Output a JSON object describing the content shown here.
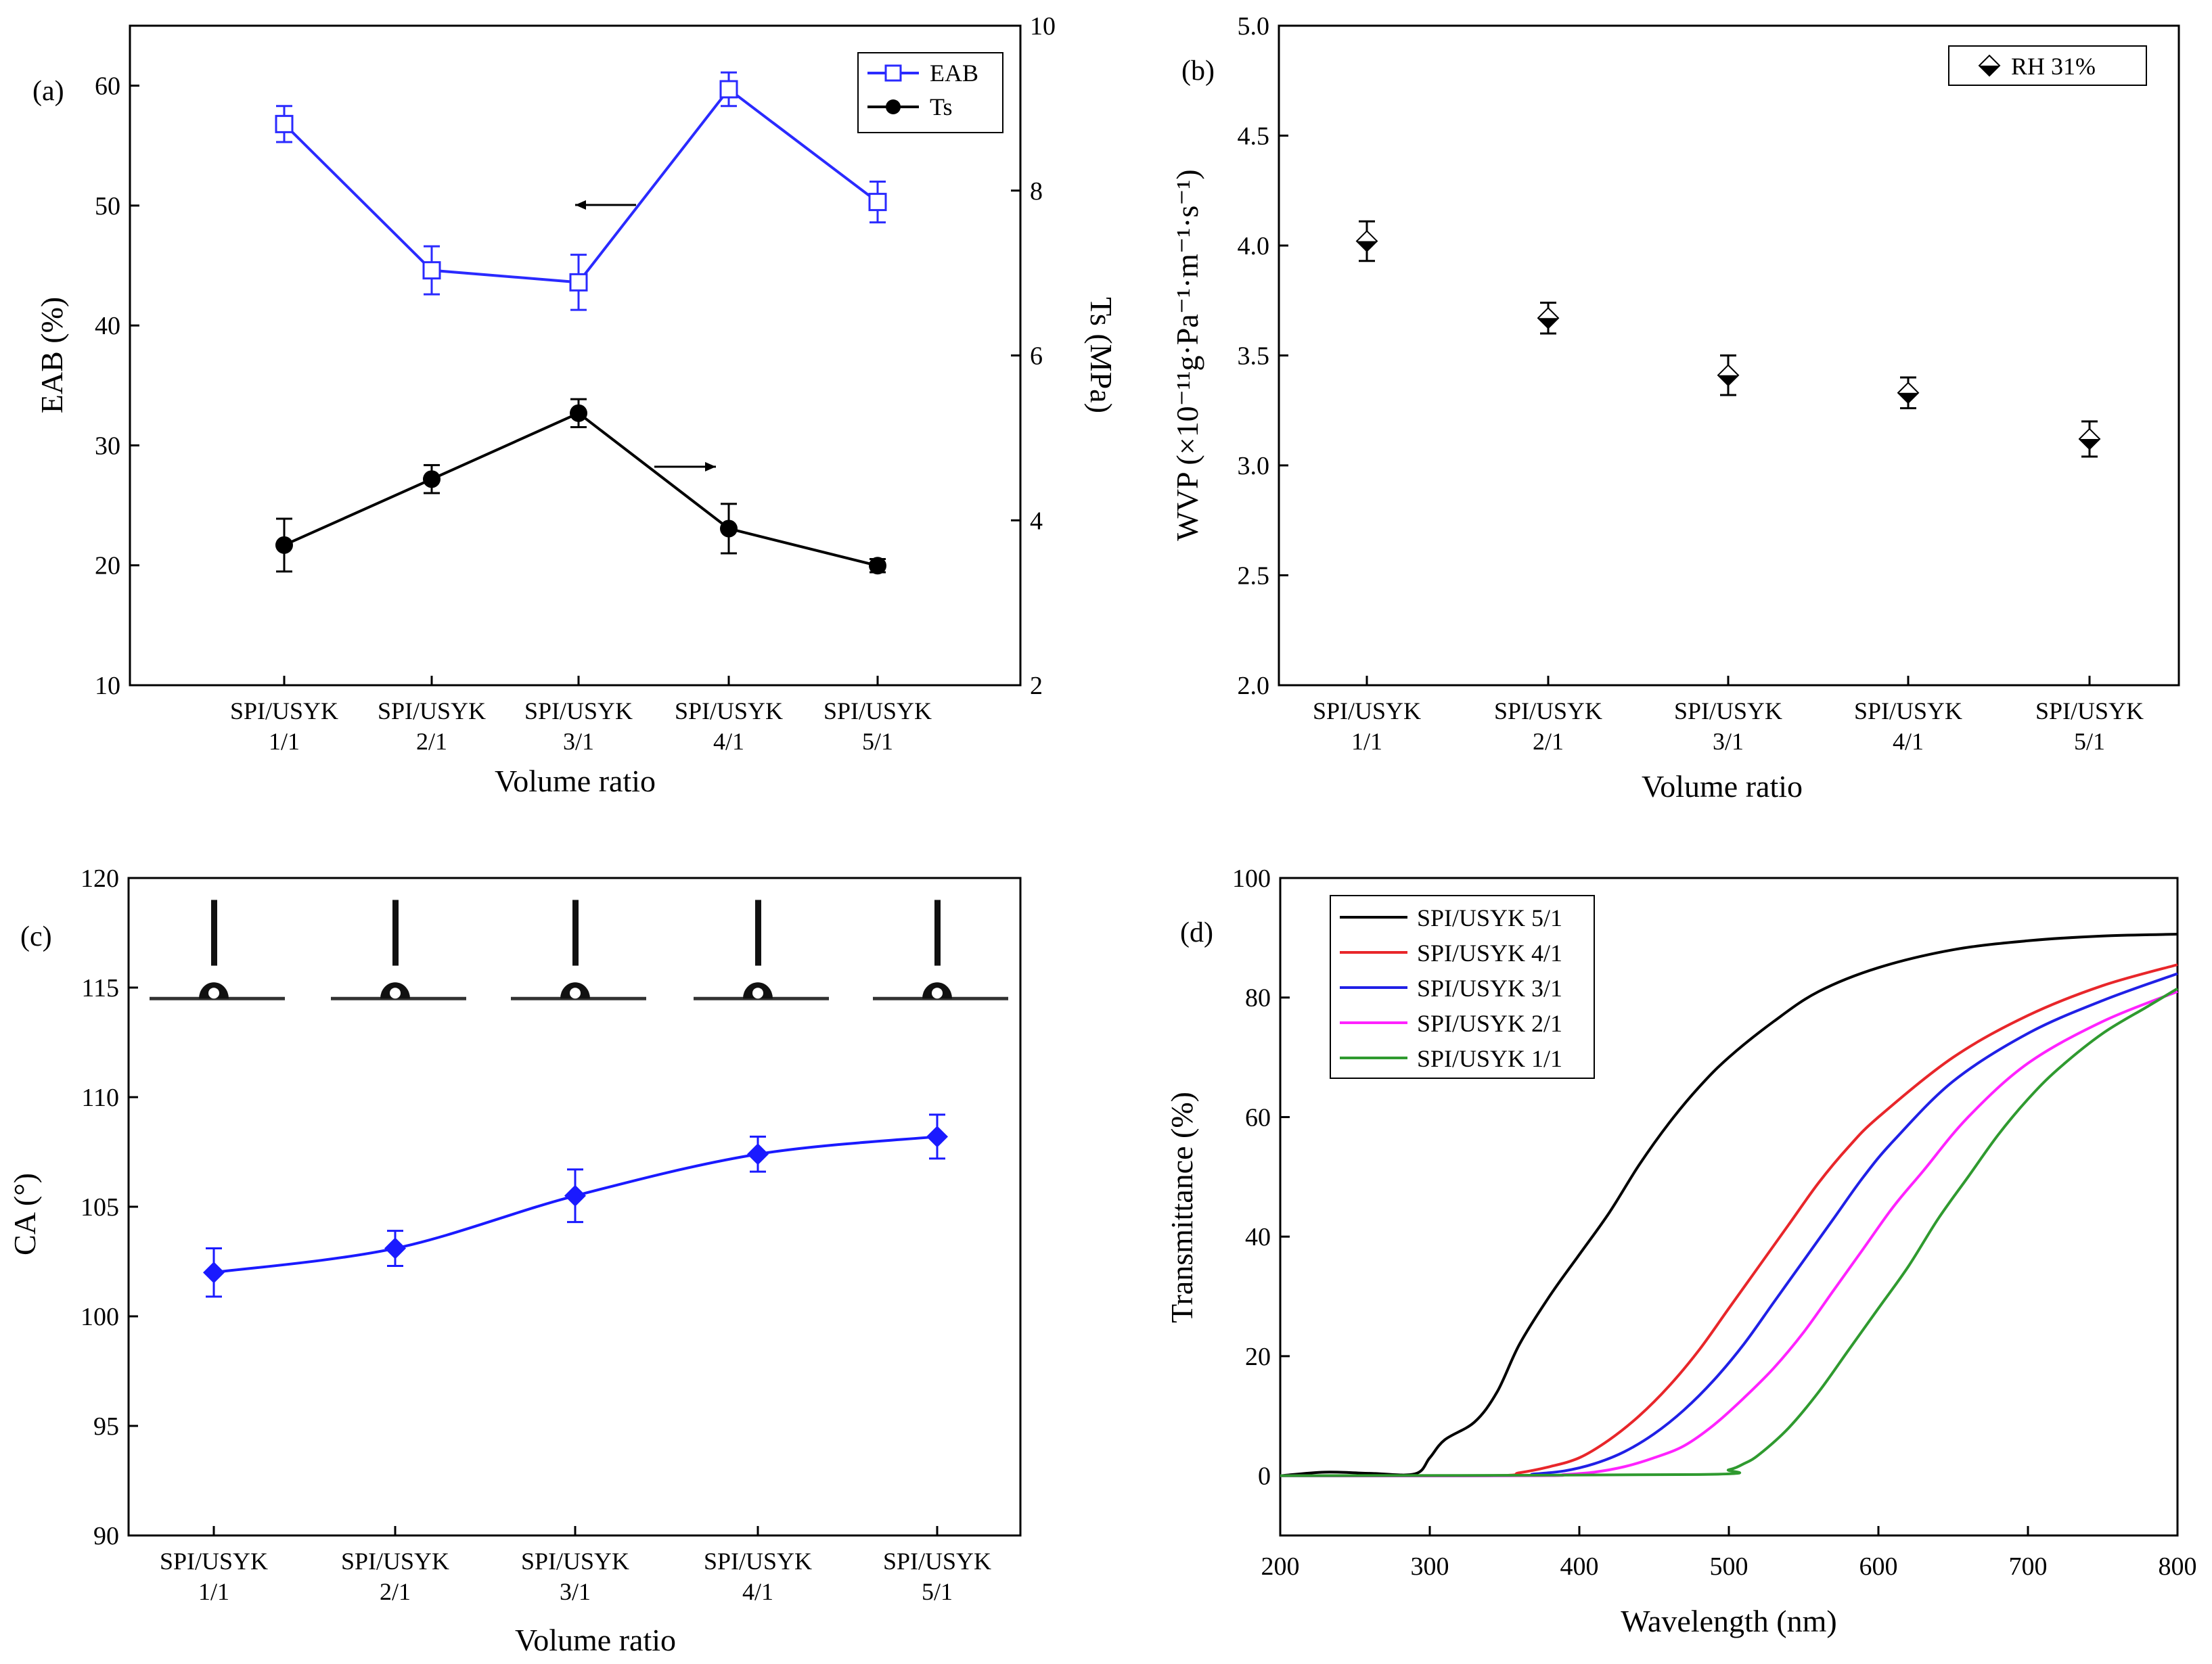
{
  "chart_data": [
    {
      "panel": "(a)",
      "type": "line",
      "categories": [
        "SPI/USYK 1/1",
        "SPI/USYK 2/1",
        "SPI/USYK 3/1",
        "SPI/USYK 4/1",
        "SPI/USYK 5/1"
      ],
      "category_lines": [
        [
          "SPI/USYK",
          "1/1"
        ],
        [
          "SPI/USYK",
          "2/1"
        ],
        [
          "SPI/USYK",
          "3/1"
        ],
        [
          "SPI/USYK",
          "4/1"
        ],
        [
          "SPI/USYK",
          "5/1"
        ]
      ],
      "xlabel": "Volume ratio",
      "ylabel": "EAB (%)",
      "ylabel_right": "Ts (MPa)",
      "ylim": [
        10,
        65
      ],
      "yticks": [
        10,
        20,
        30,
        40,
        50,
        60
      ],
      "ylim_right": [
        2,
        10
      ],
      "yticks_right": [
        2,
        4,
        6,
        8,
        10
      ],
      "series": [
        {
          "name": "EAB",
          "axis": "left",
          "color": "#2a2aff",
          "marker": "square-open",
          "values": [
            56.8,
            44.6,
            43.6,
            59.7,
            50.3
          ],
          "errors": [
            1.5,
            2.0,
            2.3,
            1.4,
            1.7
          ]
        },
        {
          "name": "Ts",
          "axis": "right",
          "color": "#000000",
          "marker": "circle",
          "values": [
            3.7,
            4.5,
            5.3,
            3.9,
            3.45
          ],
          "errors": [
            0.32,
            0.17,
            0.17,
            0.3,
            0.08
          ]
        }
      ],
      "legend_position": "top-right"
    },
    {
      "panel": "(b)",
      "type": "scatter",
      "categories": [
        "SPI/USYK 1/1",
        "SPI/USYK 2/1",
        "SPI/USYK 3/1",
        "SPI/USYK 4/1",
        "SPI/USYK 5/1"
      ],
      "category_lines": [
        [
          "SPI/USYK",
          "1/1"
        ],
        [
          "SPI/USYK",
          "2/1"
        ],
        [
          "SPI/USYK",
          "3/1"
        ],
        [
          "SPI/USYK",
          "4/1"
        ],
        [
          "SPI/USYK",
          "5/1"
        ]
      ],
      "xlabel": "Volume ratio",
      "ylabel": "WVP (×10⁻¹¹g·Pa⁻¹·m⁻¹·s⁻¹)",
      "ylim": [
        2.0,
        5.0
      ],
      "yticks": [
        "2.0",
        "2.5",
        "3.0",
        "3.5",
        "4.0",
        "4.5",
        "5.0"
      ],
      "series": [
        {
          "name": "RH 31%",
          "color": "#000000",
          "marker": "diamond-half",
          "values": [
            4.02,
            3.67,
            3.41,
            3.33,
            3.12
          ],
          "errors": [
            0.09,
            0.07,
            0.09,
            0.07,
            0.08
          ]
        }
      ],
      "legend_position": "top-right"
    },
    {
      "panel": "(c)",
      "type": "line",
      "categories": [
        "SPI/USYK 1/1",
        "SPI/USYK 2/1",
        "SPI/USYK 3/1",
        "SPI/USYK 4/1",
        "SPI/USYK 5/1"
      ],
      "category_lines": [
        [
          "SPI/USYK",
          "1/1"
        ],
        [
          "SPI/USYK",
          "2/1"
        ],
        [
          "SPI/USYK",
          "3/1"
        ],
        [
          "SPI/USYK",
          "4/1"
        ],
        [
          "SPI/USYK",
          "5/1"
        ]
      ],
      "xlabel": "Volume ratio",
      "ylabel": "CA (°)",
      "ylim": [
        90,
        120
      ],
      "yticks": [
        90,
        95,
        100,
        105,
        110,
        115,
        120
      ],
      "series": [
        {
          "name": "CA",
          "color": "#1a1aff",
          "marker": "diamond",
          "values": [
            102.0,
            103.1,
            105.5,
            107.4,
            108.2
          ],
          "errors": [
            1.1,
            0.8,
            1.2,
            0.8,
            1.0
          ]
        }
      ],
      "inset": "droplet images above each sample"
    },
    {
      "panel": "(d)",
      "type": "line",
      "xlabel": "Wavelength (nm)",
      "ylabel": "Transmittance (%)",
      "xlim": [
        200,
        800
      ],
      "xticks": [
        200,
        300,
        400,
        500,
        600,
        700,
        800
      ],
      "ylim": [
        -10,
        100
      ],
      "yticks": [
        0,
        20,
        40,
        60,
        80,
        100
      ],
      "series": [
        {
          "name": "SPI/USYK 5/1",
          "color": "#000000",
          "x": [
            200,
            230,
            260,
            290,
            300,
            310,
            330,
            345,
            360,
            380,
            400,
            420,
            440,
            460,
            480,
            500,
            530,
            560,
            600,
            650,
            700,
            750,
            800
          ],
          "y": [
            0,
            0.6,
            0.4,
            0.3,
            3,
            6,
            9,
            14,
            22,
            30,
            37,
            44,
            52,
            59,
            65,
            70,
            76,
            81,
            85,
            88,
            89.5,
            90.3,
            90.6
          ]
        },
        {
          "name": "SPI/USYK 4/1",
          "color": "#e8262a",
          "x": [
            200,
            340,
            360,
            380,
            400,
            420,
            440,
            460,
            480,
            500,
            520,
            540,
            560,
            580,
            600,
            650,
            700,
            750,
            800
          ],
          "y": [
            0,
            0,
            0.5,
            1.5,
            3,
            6,
            10,
            15,
            21,
            28,
            35,
            42,
            49,
            55,
            60,
            70,
            77,
            82,
            85.5
          ]
        },
        {
          "name": "SPI/USYK 3/1",
          "color": "#2020e6",
          "x": [
            200,
            350,
            370,
            390,
            410,
            430,
            450,
            470,
            490,
            510,
            530,
            550,
            570,
            590,
            610,
            650,
            700,
            750,
            800
          ],
          "y": [
            0,
            0,
            0.3,
            0.8,
            2,
            4,
            7,
            11,
            16,
            22,
            29,
            36,
            43,
            50,
            56,
            66,
            74,
            79.5,
            84
          ]
        },
        {
          "name": "SPI/USYK 2/1",
          "color": "#ff22ff",
          "x": [
            200,
            370,
            390,
            410,
            430,
            450,
            470,
            490,
            510,
            530,
            550,
            570,
            590,
            610,
            630,
            660,
            700,
            750,
            800
          ],
          "y": [
            0,
            0,
            0.2,
            0.6,
            1.5,
            3,
            5,
            8.5,
            13,
            18,
            24,
            31,
            38,
            45,
            51,
            60,
            69,
            76,
            81
          ]
        },
        {
          "name": "SPI/USYK 1/1",
          "color": "#2f9a2f",
          "x": [
            200,
            480,
            500,
            510,
            520,
            540,
            560,
            580,
            600,
            620,
            640,
            660,
            680,
            700,
            720,
            750,
            780,
            800
          ],
          "y": [
            0,
            0.2,
            1,
            2,
            3.5,
            8,
            14,
            21,
            28,
            35,
            43,
            50,
            57,
            63,
            68,
            74,
            78.5,
            81.5
          ]
        }
      ],
      "legend_position": "top-left"
    }
  ],
  "panels": {
    "a": {
      "label": "(a)",
      "arrow_left": "←",
      "arrow_right": "→"
    },
    "b": {
      "label": "(b)"
    },
    "c": {
      "label": "(c)"
    },
    "d": {
      "label": "(d)"
    }
  }
}
